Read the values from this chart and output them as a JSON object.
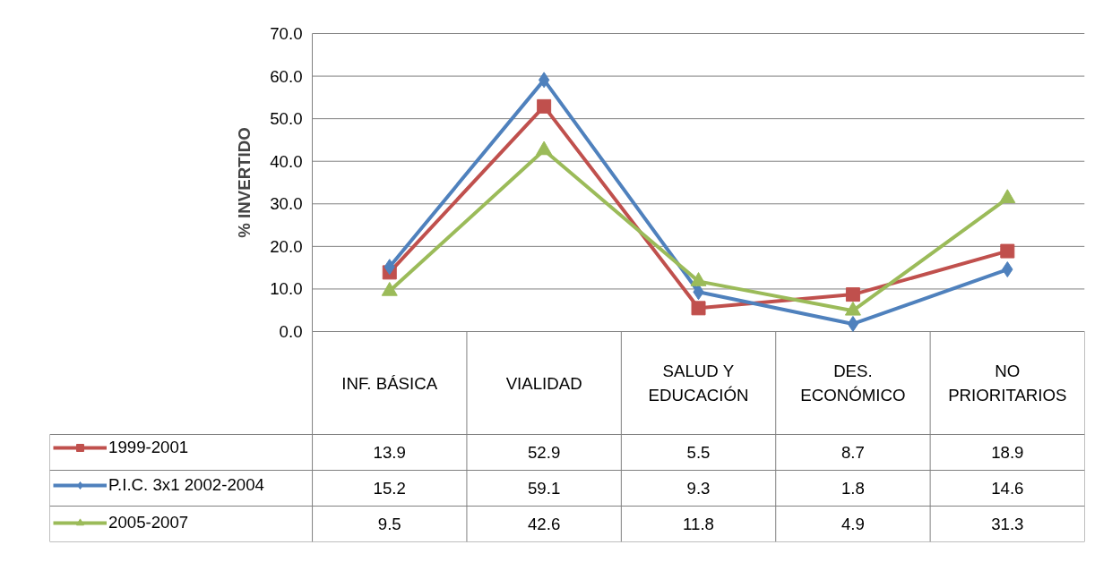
{
  "chart_data": {
    "type": "line",
    "ylabel": "% INVERTIDO",
    "categories": [
      "INF. BÁSICA",
      "VIALIDAD",
      "SALUD Y EDUCACIÓN",
      "DES. ECONÓMICO",
      "NO PRIORITARIOS"
    ],
    "series": [
      {
        "name": "1999-2001",
        "color": "#c0504d",
        "marker": "square",
        "values": [
          13.9,
          52.9,
          5.5,
          8.7,
          18.9
        ]
      },
      {
        "name": "P.I.C. 3x1 2002-2004",
        "color": "#4f81bd",
        "marker": "diamond",
        "values": [
          15.2,
          59.1,
          9.3,
          1.8,
          14.6
        ]
      },
      {
        "name": "2005-2007",
        "color": "#9bbb59",
        "marker": "triangle",
        "values": [
          9.5,
          42.6,
          11.8,
          4.9,
          31.3
        ]
      }
    ],
    "ylim": [
      0,
      70
    ],
    "yticks": [
      {
        "value": 0,
        "label": "0.0"
      },
      {
        "value": 10,
        "label": "10.0"
      },
      {
        "value": 20,
        "label": "20.0"
      },
      {
        "value": 30,
        "label": "30.0"
      },
      {
        "value": 40,
        "label": "40.0"
      },
      {
        "value": 50,
        "label": "50.0"
      },
      {
        "value": 60,
        "label": "60.0"
      },
      {
        "value": 70,
        "label": "70.0"
      }
    ],
    "grid": "y",
    "legend": "bottom",
    "data_labels": true,
    "line_style": "solid"
  }
}
